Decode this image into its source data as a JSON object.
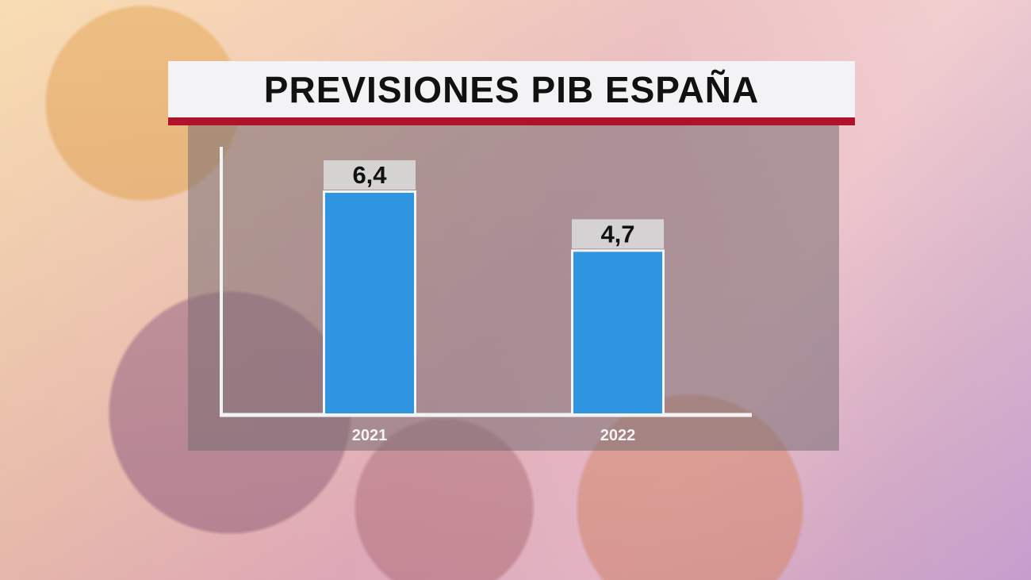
{
  "title": "PREVISIONES PIB ESPAÑA",
  "colors": {
    "bar": "#2f95e0",
    "title_stripe": "#b0122c",
    "title_bg": "#f3f2f4",
    "label_box": "#d8d8d8"
  },
  "chart_data": {
    "type": "bar",
    "title": "PREVISIONES PIB ESPAÑA",
    "categories": [
      "2021",
      "2022"
    ],
    "values": [
      6.4,
      4.7
    ],
    "data_labels": [
      "6,4",
      "4,7"
    ],
    "xlabel": "",
    "ylabel": "",
    "grid": false,
    "legend": "none"
  }
}
